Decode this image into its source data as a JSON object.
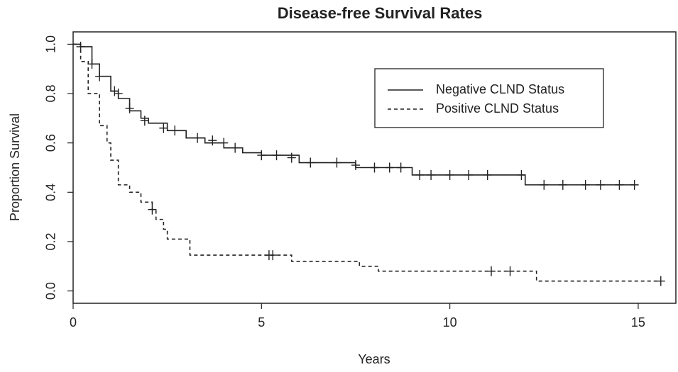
{
  "chart_data": {
    "type": "step",
    "title": "Disease-free Survival Rates",
    "x_label": "Years",
    "y_label": "Proportion Survival",
    "xlim": [
      0,
      16
    ],
    "ylim": [
      -0.05,
      1.05
    ],
    "xticks": [
      0,
      5,
      10,
      15
    ],
    "yticks": [
      {
        "value": 0,
        "label": "0.0"
      },
      0.2,
      0.4,
      0.6,
      0.8,
      {
        "value": 1,
        "label": "1.0"
      }
    ],
    "legend": "top-right",
    "series": [
      {
        "name": "Negative CLND Status",
        "color": "#222222",
        "line_style": "solid",
        "x": [
          0,
          0.2,
          0.5,
          0.7,
          1.0,
          1.2,
          1.5,
          1.8,
          2.0,
          2.5,
          3.0,
          3.5,
          4.0,
          4.5,
          5.0,
          6.0,
          7.5,
          9.0,
          12.0,
          14.9
        ],
        "values": [
          1.0,
          0.99,
          0.92,
          0.87,
          0.81,
          0.78,
          0.73,
          0.7,
          0.68,
          0.65,
          0.62,
          0.6,
          0.58,
          0.56,
          0.55,
          0.52,
          0.5,
          0.47,
          0.43,
          0.43
        ],
        "censored_x": [
          0.2,
          0.5,
          0.7,
          1.1,
          1.2,
          1.5,
          1.9,
          2.4,
          2.7,
          3.3,
          3.7,
          4.0,
          4.3,
          5.0,
          5.4,
          5.8,
          6.3,
          7.0,
          7.5,
          8.0,
          8.4,
          8.7,
          9.2,
          9.5,
          10.0,
          10.5,
          11.0,
          11.9,
          12.5,
          13.0,
          13.6,
          14.0,
          14.5,
          14.9
        ],
        "censored_values": [
          0.99,
          0.92,
          0.87,
          0.81,
          0.8,
          0.74,
          0.69,
          0.66,
          0.65,
          0.62,
          0.61,
          0.6,
          0.58,
          0.55,
          0.55,
          0.54,
          0.52,
          0.52,
          0.51,
          0.5,
          0.5,
          0.5,
          0.47,
          0.47,
          0.47,
          0.47,
          0.47,
          0.47,
          0.43,
          0.43,
          0.43,
          0.43,
          0.43,
          0.43
        ]
      },
      {
        "name": "Positive CLND Status",
        "color": "#222222",
        "line_style": "dashed",
        "x": [
          0,
          0.2,
          0.4,
          0.7,
          0.9,
          1.0,
          1.2,
          1.5,
          1.8,
          2.1,
          2.2,
          2.4,
          2.5,
          3.1,
          5.8,
          7.6,
          8.1,
          12.3,
          15.6
        ],
        "values": [
          1.0,
          0.93,
          0.8,
          0.67,
          0.6,
          0.53,
          0.43,
          0.4,
          0.36,
          0.33,
          0.29,
          0.25,
          0.21,
          0.145,
          0.12,
          0.1,
          0.08,
          0.04,
          0.04
        ],
        "censored_x": [
          2.1,
          5.2,
          5.3,
          11.1,
          11.6,
          15.6
        ],
        "censored_values": [
          0.33,
          0.145,
          0.145,
          0.08,
          0.08,
          0.04
        ]
      }
    ]
  }
}
